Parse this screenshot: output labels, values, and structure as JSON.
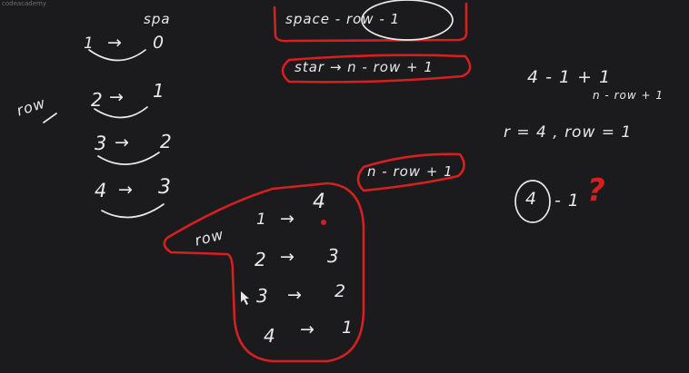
{
  "watermark": "codeacademy",
  "left_notes": {
    "spaces_label": "spa",
    "row_label": "row",
    "mappings": [
      {
        "row": "1",
        "arrow": "→",
        "spaces": "0"
      },
      {
        "row": "2",
        "arrow": "→",
        "spaces": "1"
      },
      {
        "row": "3",
        "arrow": "→",
        "spaces": "2"
      },
      {
        "row": "4",
        "arrow": "→",
        "spaces": "3"
      }
    ]
  },
  "top_box": {
    "formula_1": "space - row - 1",
    "formula_2": "star → n - row + 1"
  },
  "middle_note": "n - row + 1",
  "bottom_box": {
    "label": "row",
    "mappings": [
      {
        "row": "1",
        "arrow": "→",
        "stars": "4"
      },
      {
        "row": "2",
        "arrow": "→",
        "stars": "3"
      },
      {
        "row": "3",
        "arrow": "→",
        "stars": "2"
      },
      {
        "row": "4",
        "arrow": "→",
        "stars": "1"
      }
    ]
  },
  "right_notes": {
    "line_1": "4 - 1 + 1",
    "line_1b": "n - row + 1",
    "line_2": "r = 4 , row = 1",
    "line_3_circled": "4",
    "line_3_rest": "- 1",
    "question_mark": "?"
  },
  "colors": {
    "background": "#1b1b1d",
    "ink": "#e9e9e9",
    "highlight": "#d61f1f"
  }
}
